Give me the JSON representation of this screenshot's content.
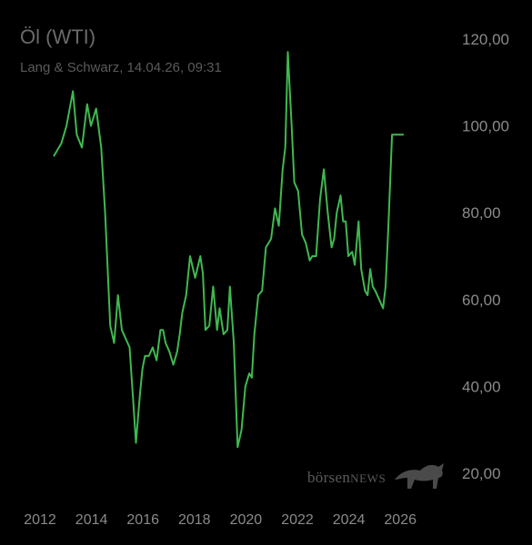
{
  "chart_data": {
    "type": "line",
    "title": "Öl (WTI)",
    "subtitle": "Lang & Schwarz, 14.04.26, 09:31",
    "line_color": "#3fb950",
    "background": "#000000",
    "x_range": [
      2012,
      2026.7
    ],
    "y_range": [
      20,
      120
    ],
    "y_ticks": [
      "120,00",
      "100,00",
      "80,00",
      "60,00",
      "40,00",
      "20,00"
    ],
    "y_tick_values": [
      120,
      100,
      80,
      60,
      40,
      20
    ],
    "x_ticks": [
      "2012",
      "2014",
      "2016",
      "2018",
      "2020",
      "2022",
      "2024",
      "2026"
    ],
    "x_tick_values": [
      2012,
      2014,
      2016,
      2018,
      2020,
      2022,
      2024,
      2026
    ],
    "series": [
      {
        "x": [
          2012.6,
          2012.9,
          2013.1,
          2013.35,
          2013.5,
          2013.7,
          2013.9,
          2014.05,
          2014.25,
          2014.45,
          2014.6,
          2014.8,
          2014.95,
          2015.1,
          2015.25,
          2015.4,
          2015.55,
          2015.7,
          2015.8,
          2015.95,
          2016.05,
          2016.15,
          2016.3,
          2016.45,
          2016.6,
          2016.75,
          2016.85,
          2016.95,
          2017.1,
          2017.25,
          2017.4,
          2017.5,
          2017.6,
          2017.75,
          2017.9,
          2018.1,
          2018.3,
          2018.4,
          2018.5,
          2018.65,
          2018.8,
          2018.95,
          2019.05,
          2019.2,
          2019.35,
          2019.45,
          2019.6,
          2019.75,
          2019.9,
          2020.05,
          2020.2,
          2020.3,
          2020.4,
          2020.55,
          2020.7,
          2020.85,
          2021.05,
          2021.2,
          2021.35,
          2021.5,
          2021.6,
          2021.7,
          2021.85,
          2021.95,
          2022.1,
          2022.25,
          2022.4,
          2022.55,
          2022.65,
          2022.8,
          2022.95,
          2023.1,
          2023.25,
          2023.4,
          2023.5,
          2023.6,
          2023.75,
          2023.85,
          2023.95,
          2024.05,
          2024.2,
          2024.3,
          2024.45,
          2024.55,
          2024.7,
          2024.8,
          2024.9,
          2025.0,
          2025.1,
          2025.25,
          2025.4,
          2025.5,
          2025.6,
          2025.75,
          2025.9,
          2026.0,
          2026.08,
          2026.2
        ],
        "y": [
          93,
          96,
          100,
          108,
          98,
          95,
          105,
          100,
          104,
          95,
          80,
          54,
          50,
          61,
          53,
          51,
          49,
          36,
          27,
          38,
          44,
          47,
          47,
          49,
          46,
          53,
          53,
          50,
          48,
          45,
          48,
          52,
          57,
          61,
          70,
          65,
          70,
          66,
          53,
          54,
          63,
          53,
          58,
          52,
          53,
          63,
          50,
          26,
          30,
          40,
          43,
          42,
          52,
          61,
          62,
          72,
          74,
          81,
          77,
          90,
          95,
          117,
          100,
          87,
          85,
          75,
          73,
          69,
          70,
          70,
          83,
          90,
          80,
          72,
          74,
          80,
          84,
          78,
          78,
          70,
          71,
          68,
          78,
          67,
          62,
          61,
          67,
          63,
          62,
          60,
          58,
          63,
          76,
          98,
          98,
          98,
          98,
          98
        ]
      }
    ]
  },
  "watermark": {
    "part1": "börsen",
    "part2": "NEWS"
  }
}
